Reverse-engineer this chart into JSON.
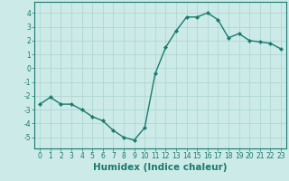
{
  "x": [
    0,
    1,
    2,
    3,
    4,
    5,
    6,
    7,
    8,
    9,
    10,
    11,
    12,
    13,
    14,
    15,
    16,
    17,
    18,
    19,
    20,
    21,
    22,
    23
  ],
  "y": [
    -2.6,
    -2.1,
    -2.6,
    -2.6,
    -3.0,
    -3.5,
    -3.8,
    -4.5,
    -5.0,
    -5.2,
    -4.3,
    -0.4,
    1.5,
    2.7,
    3.7,
    3.7,
    4.0,
    3.5,
    2.2,
    2.5,
    2.0,
    1.9,
    1.8,
    1.4
  ],
  "line_color": "#1a7a6e",
  "marker": "D",
  "markersize": 2.2,
  "linewidth": 1.0,
  "bg_color": "#cceae7",
  "grid_color": "#aad4d0",
  "xlabel": "Humidex (Indice chaleur)",
  "xlim": [
    -0.5,
    23.5
  ],
  "ylim": [
    -5.8,
    4.8
  ],
  "yticks": [
    -5,
    -4,
    -3,
    -2,
    -1,
    0,
    1,
    2,
    3,
    4
  ],
  "xticks": [
    0,
    1,
    2,
    3,
    4,
    5,
    6,
    7,
    8,
    9,
    10,
    11,
    12,
    13,
    14,
    15,
    16,
    17,
    18,
    19,
    20,
    21,
    22,
    23
  ],
  "tick_fontsize": 5.5,
  "xlabel_fontsize": 7.5
}
